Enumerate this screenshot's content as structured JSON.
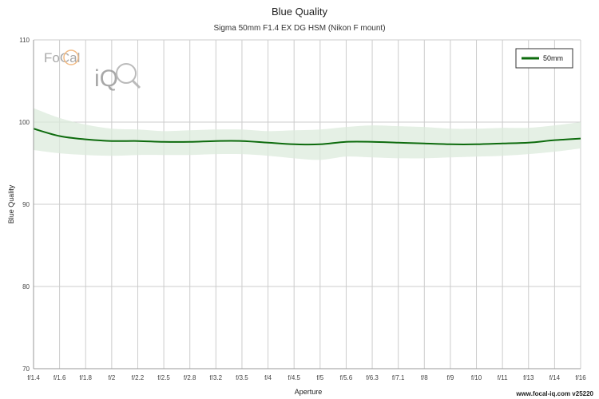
{
  "colors": {
    "series": "#0d6b0d",
    "band": "#dcebdc",
    "grid": "#cccccc",
    "axis": "#999999",
    "logo": "#a8a8a8",
    "logo_accent": "#f0a050"
  },
  "logo": {
    "line1": "FoCal",
    "line2": "iQ"
  },
  "footer": "www.focal-iq.com v25220",
  "chart_data": {
    "type": "line",
    "title": "Blue Quality",
    "subtitle": "Sigma 50mm F1.4 EX DG HSM (Nikon F mount)",
    "xlabel": "Aperture",
    "ylabel": "Blue Quality",
    "ylim": [
      70,
      110
    ],
    "yticks": [
      70,
      80,
      90,
      100,
      110
    ],
    "categories": [
      "f/1.4",
      "f/1.6",
      "f/1.8",
      "f/2",
      "f/2.2",
      "f/2.5",
      "f/2.8",
      "f/3.2",
      "f/3.5",
      "f/4",
      "f/4.5",
      "f/5",
      "f/5.6",
      "f/6.3",
      "f/7.1",
      "f/8",
      "f/9",
      "f/10",
      "f/11",
      "f/13",
      "f/14",
      "f/16"
    ],
    "grid": true,
    "legend_position": "top-right",
    "series": [
      {
        "name": "50mm",
        "values": [
          99.2,
          98.3,
          97.9,
          97.7,
          97.7,
          97.6,
          97.6,
          97.7,
          97.7,
          97.5,
          97.3,
          97.3,
          97.6,
          97.6,
          97.5,
          97.4,
          97.3,
          97.3,
          97.4,
          97.5,
          97.8,
          98.0
        ],
        "band_upper": [
          101.7,
          100.5,
          99.7,
          99.2,
          99.1,
          98.9,
          99.0,
          99.1,
          99.1,
          98.9,
          99.0,
          99.1,
          99.4,
          99.6,
          99.5,
          99.4,
          99.2,
          99.2,
          99.3,
          99.3,
          99.6,
          100.0
        ],
        "band_lower": [
          96.6,
          96.2,
          96.0,
          95.9,
          96.0,
          96.0,
          96.0,
          96.1,
          96.1,
          95.9,
          95.6,
          95.4,
          95.8,
          95.7,
          95.6,
          95.6,
          95.7,
          95.8,
          95.9,
          96.1,
          96.4,
          96.8
        ]
      }
    ]
  }
}
